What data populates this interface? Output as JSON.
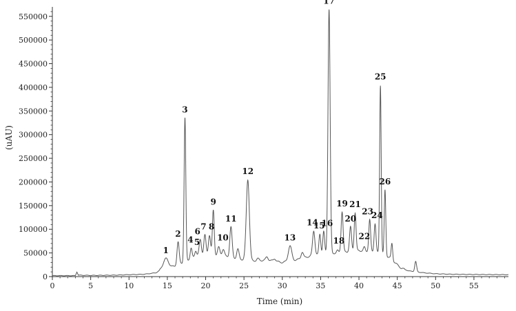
{
  "chart_data": {
    "type": "line",
    "title": "",
    "xlabel": "Time (min)",
    "ylabel": "(uAU)",
    "xlim": [
      0,
      59.5
    ],
    "ylim": [
      0,
      570000
    ],
    "xticks": [
      0,
      5,
      10,
      15,
      20,
      25,
      30,
      35,
      40,
      45,
      50,
      55
    ],
    "yticks": [
      0,
      50000,
      100000,
      150000,
      200000,
      250000,
      300000,
      350000,
      400000,
      450000,
      500000,
      550000
    ],
    "grid": false,
    "line_color": "#555555",
    "baseline": [
      [
        0,
        2000
      ],
      [
        3.0,
        2000
      ],
      [
        3.2,
        10000
      ],
      [
        3.4,
        3000
      ],
      [
        5,
        2500
      ],
      [
        8,
        3000
      ],
      [
        10,
        4000
      ],
      [
        12,
        5000
      ],
      [
        13.5,
        8000
      ],
      [
        14.2,
        14000
      ],
      [
        16,
        22000
      ],
      [
        19,
        45000
      ],
      [
        22,
        45000
      ],
      [
        24,
        38000
      ],
      [
        26,
        33000
      ],
      [
        28,
        35000
      ],
      [
        30,
        30000
      ],
      [
        32,
        36000
      ],
      [
        34,
        45000
      ],
      [
        36,
        48000
      ],
      [
        38,
        52000
      ],
      [
        40,
        55000
      ],
      [
        42,
        52000
      ],
      [
        43,
        48000
      ],
      [
        44,
        40000
      ],
      [
        44.8,
        28000
      ],
      [
        45.5,
        18000
      ],
      [
        46.5,
        12000
      ],
      [
        47.5,
        10000
      ],
      [
        48.5,
        8000
      ],
      [
        50,
        6000
      ],
      [
        52,
        5000
      ],
      [
        55,
        4500
      ],
      [
        59.5,
        4000
      ]
    ],
    "peaks": [
      {
        "label": "1",
        "x": 14.8,
        "y": 38000,
        "w": 0.35
      },
      {
        "label": "2",
        "x": 16.4,
        "y": 73000,
        "w": 0.14
      },
      {
        "label": "3",
        "x": 17.3,
        "y": 335000,
        "w": 0.11
      },
      {
        "label": "4",
        "x": 18.1,
        "y": 60000,
        "w": 0.12
      },
      {
        "label": "5",
        "x": 18.7,
        "y": 55000,
        "w": 0.12
      },
      {
        "label": "6",
        "x": 19.3,
        "y": 78000,
        "w": 0.14
      },
      {
        "label": "7",
        "x": 19.9,
        "y": 88000,
        "w": 0.14
      },
      {
        "label": "8",
        "x": 20.5,
        "y": 88000,
        "w": 0.14
      },
      {
        "label": "9",
        "x": 21.0,
        "y": 140000,
        "w": 0.12
      },
      {
        "label": "10",
        "x": 21.7,
        "y": 62000,
        "w": 0.15
      },
      {
        "label": "11",
        "x": 23.3,
        "y": 105000,
        "w": 0.15
      },
      {
        "label": "12",
        "x": 25.5,
        "y": 205000,
        "w": 0.2
      },
      {
        "label": "13",
        "x": 31.0,
        "y": 65000,
        "w": 0.22
      },
      {
        "label": "14",
        "x": 34.1,
        "y": 97000,
        "w": 0.15
      },
      {
        "label": "15",
        "x": 34.9,
        "y": 90000,
        "w": 0.12
      },
      {
        "label": "16",
        "x": 35.4,
        "y": 95000,
        "w": 0.12
      },
      {
        "label": "17",
        "x": 36.1,
        "y": 565000,
        "w": 0.14
      },
      {
        "label": "18",
        "x": 37.2,
        "y": 55000,
        "w": 0.12
      },
      {
        "label": "19",
        "x": 37.8,
        "y": 137000,
        "w": 0.13
      },
      {
        "label": "20",
        "x": 38.9,
        "y": 105000,
        "w": 0.13
      },
      {
        "label": "21",
        "x": 39.5,
        "y": 135000,
        "w": 0.12
      },
      {
        "label": "22",
        "x": 40.7,
        "y": 62000,
        "w": 0.12
      },
      {
        "label": "23",
        "x": 41.4,
        "y": 120000,
        "w": 0.12
      },
      {
        "label": "24",
        "x": 42.1,
        "y": 112000,
        "w": 0.12
      },
      {
        "label": "25",
        "x": 42.8,
        "y": 405000,
        "w": 0.1
      },
      {
        "label": "26",
        "x": 43.4,
        "y": 183000,
        "w": 0.1
      }
    ],
    "minor_peaks": [
      {
        "x": 22.3,
        "y": 58000,
        "w": 0.15
      },
      {
        "x": 24.2,
        "y": 58000,
        "w": 0.15
      },
      {
        "x": 26.8,
        "y": 38000,
        "w": 0.15
      },
      {
        "x": 28.0,
        "y": 42000,
        "w": 0.15
      },
      {
        "x": 29.0,
        "y": 38000,
        "w": 0.15
      },
      {
        "x": 32.6,
        "y": 52000,
        "w": 0.15
      },
      {
        "x": 44.3,
        "y": 70000,
        "w": 0.1
      },
      {
        "x": 47.4,
        "y": 32000,
        "w": 0.12
      }
    ]
  }
}
